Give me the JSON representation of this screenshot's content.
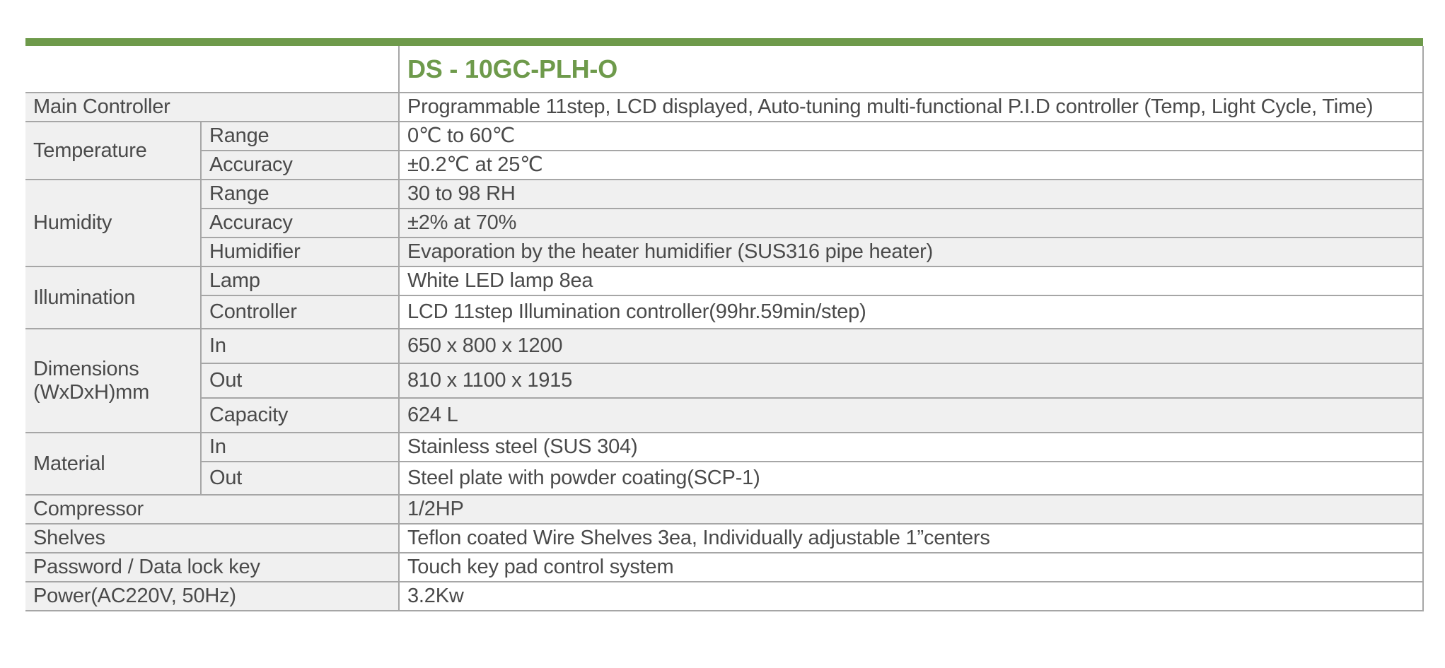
{
  "spec_table": {
    "model": "DS - 10GC-PLH-O",
    "rows": [
      {
        "label": "Main Controller",
        "value": "Programmable 11step,  LCD displayed, Auto-tuning multi-functional P.I.D controller (Temp, Light Cycle, Time)"
      },
      {
        "label": "Temperature",
        "subs": [
          {
            "label": "Range",
            "value": "0℃ to 60℃"
          },
          {
            "label": "Accuracy",
            "value": " ±0.2℃  at 25℃"
          }
        ]
      },
      {
        "label": "Humidity",
        "subs": [
          {
            "label": "Range",
            "value": "30 to 98 RH"
          },
          {
            "label": "Accuracy",
            "value": "±2%  at  70%"
          },
          {
            "label": "Humidifier",
            "value": "Evaporation by the heater humidifier (SUS316 pipe heater)"
          }
        ]
      },
      {
        "label": "Illumination",
        "subs": [
          {
            "label": "Lamp",
            "value": "White LED lamp 8ea"
          },
          {
            "label": "Controller",
            "value": "LCD 11step Illumination controller(99hr.59min/step)"
          }
        ]
      },
      {
        "label": "Dimensions (WxDxH)mm",
        "subs": [
          {
            "label": "In",
            "value": "650 x 800 x 1200"
          },
          {
            "label": "Out",
            "value": "810 x 1100 x 1915"
          },
          {
            "label": "Capacity",
            "value": "624 L"
          }
        ]
      },
      {
        "label": "Material",
        "subs": [
          {
            "label": "In",
            "value": "Stainless steel (SUS 304)"
          },
          {
            "label": "Out",
            "value": "Steel plate with powder coating(SCP-1)"
          }
        ]
      },
      {
        "label": "Compressor",
        "value": "1/2HP"
      },
      {
        "label": "Shelves",
        "value": "Teflon coated Wire Shelves  3ea, Individually adjustable 1”centers"
      },
      {
        "label": "Password / Data lock key",
        "value": "Touch key pad control system"
      },
      {
        "label": "Power(AC220V, 50Hz)",
        "value": "3.2Kw"
      }
    ]
  },
  "colors": {
    "accent_green": "#6e9a4b",
    "label_bg": "#f0f0f0",
    "border": "#a6a6a6",
    "text": "#4a4a4a"
  }
}
